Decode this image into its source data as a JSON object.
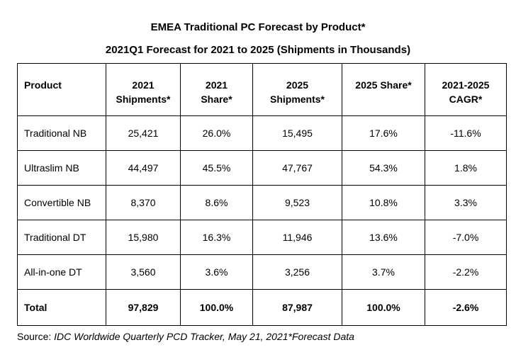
{
  "title": "EMEA Traditional PC Forecast by Product*",
  "subtitle": "2021Q1 Forecast for 2021 to 2025 (Shipments in Thousands)",
  "table": {
    "headers": [
      [
        "Product"
      ],
      [
        "2021",
        "Shipments*"
      ],
      [
        "2021",
        "Share*"
      ],
      [
        "2025",
        "Shipments*"
      ],
      [
        "2025 Share*"
      ],
      [
        "2021-2025",
        "CAGR*"
      ]
    ],
    "rows": [
      [
        "Traditional NB",
        "25,421",
        "26.0%",
        "15,495",
        "17.6%",
        "-11.6%"
      ],
      [
        "Ultraslim NB",
        "44,497",
        "45.5%",
        "47,767",
        "54.3%",
        "1.8%"
      ],
      [
        "Convertible NB",
        "8,370",
        "8.6%",
        "9,523",
        "10.8%",
        "3.3%"
      ],
      [
        "Traditional DT",
        "15,980",
        "16.3%",
        "11,946",
        "13.6%",
        "-7.0%"
      ],
      [
        "All-in-one DT",
        "3,560",
        "3.6%",
        "3,256",
        "3.7%",
        "-2.2%"
      ]
    ],
    "total": [
      "Total",
      "97,829",
      "100.0%",
      "87,987",
      "100.0%",
      "-2.6%"
    ]
  },
  "source": {
    "prefix": "Source: ",
    "tracker": "IDC Worldwide Quarterly PCD Tracker, May 21, 2021",
    "note": "*Forecast Data"
  }
}
